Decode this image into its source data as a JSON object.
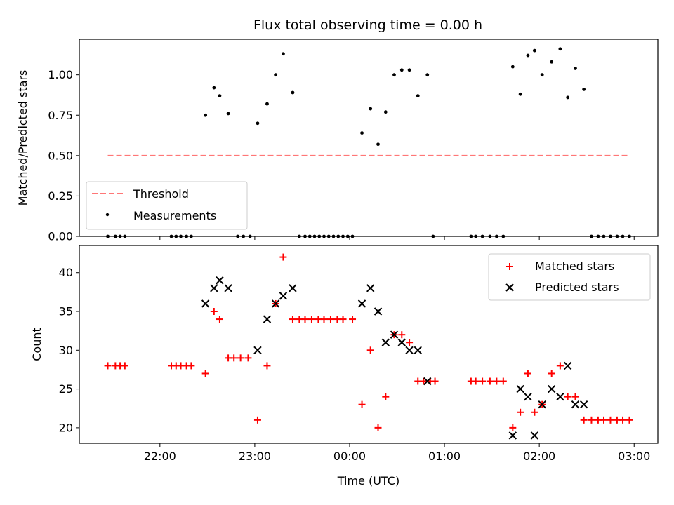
{
  "chart_data": [
    {
      "type": "scatter",
      "title": "Flux total observing time = 0.00 h",
      "xlabel": "",
      "ylabel": "Matched/Predicted stars",
      "ylim": [
        0,
        1.22
      ],
      "yticks": [
        "0.00",
        "0.25",
        "0.50",
        "0.75",
        "1.00"
      ],
      "xtick_labels_visible": false,
      "threshold": {
        "name": "Threshold",
        "value": 0.5,
        "x_range": [
          21.45,
          26.95
        ],
        "color": "#ff7777"
      },
      "legend": {
        "placement": "lower left",
        "entries": [
          "Threshold",
          "Measurements"
        ]
      },
      "series": [
        {
          "name": "Measurements",
          "color": "#000000",
          "marker": "dot",
          "points": [
            [
              21.45,
              0
            ],
            [
              21.53,
              0
            ],
            [
              21.58,
              0
            ],
            [
              21.63,
              0
            ],
            [
              22.12,
              0
            ],
            [
              22.17,
              0
            ],
            [
              22.22,
              0
            ],
            [
              22.28,
              0
            ],
            [
              22.33,
              0
            ],
            [
              22.48,
              0.75
            ],
            [
              22.57,
              0.92
            ],
            [
              22.63,
              0.87
            ],
            [
              22.72,
              0.76
            ],
            [
              22.82,
              0
            ],
            [
              22.88,
              0
            ],
            [
              22.95,
              0
            ],
            [
              23.03,
              0.7
            ],
            [
              23.13,
              0.82
            ],
            [
              23.22,
              1.0
            ],
            [
              23.3,
              1.13
            ],
            [
              23.4,
              0.89
            ],
            [
              23.47,
              0
            ],
            [
              23.53,
              0
            ],
            [
              23.58,
              0
            ],
            [
              23.63,
              0
            ],
            [
              23.68,
              0
            ],
            [
              23.73,
              0
            ],
            [
              23.78,
              0
            ],
            [
              23.83,
              0
            ],
            [
              23.88,
              0
            ],
            [
              23.93,
              0
            ],
            [
              23.98,
              0
            ],
            [
              24.03,
              0
            ],
            [
              24.13,
              0.64
            ],
            [
              24.22,
              0.79
            ],
            [
              24.3,
              0.57
            ],
            [
              24.38,
              0.77
            ],
            [
              24.47,
              1.0
            ],
            [
              24.55,
              1.03
            ],
            [
              24.63,
              1.03
            ],
            [
              24.72,
              0.87
            ],
            [
              24.82,
              1.0
            ],
            [
              24.88,
              0
            ],
            [
              25.28,
              0
            ],
            [
              25.33,
              0
            ],
            [
              25.4,
              0
            ],
            [
              25.48,
              0
            ],
            [
              25.55,
              0
            ],
            [
              25.62,
              0
            ],
            [
              25.72,
              1.05
            ],
            [
              25.8,
              0.88
            ],
            [
              25.88,
              1.12
            ],
            [
              25.95,
              1.15
            ],
            [
              26.03,
              1.0
            ],
            [
              26.13,
              1.08
            ],
            [
              26.22,
              1.16
            ],
            [
              26.3,
              0.86
            ],
            [
              26.38,
              1.04
            ],
            [
              26.47,
              0.91
            ],
            [
              26.55,
              0
            ],
            [
              26.62,
              0
            ],
            [
              26.68,
              0
            ],
            [
              26.75,
              0
            ],
            [
              26.82,
              0
            ],
            [
              26.88,
              0
            ],
            [
              26.95,
              0
            ]
          ]
        }
      ]
    },
    {
      "type": "scatter",
      "title": "",
      "xlabel": "Time (UTC)",
      "ylabel": "Count",
      "ylim": [
        18,
        43.5
      ],
      "yticks": [
        "20",
        "25",
        "30",
        "35",
        "40"
      ],
      "x_ticks": [
        {
          "value": 22,
          "label": "22:00"
        },
        {
          "value": 23,
          "label": "23:00"
        },
        {
          "value": 24,
          "label": "00:00"
        },
        {
          "value": 25,
          "label": "01:00"
        },
        {
          "value": 26,
          "label": "02:00"
        },
        {
          "value": 27,
          "label": "03:00"
        }
      ],
      "legend": {
        "placement": "upper right",
        "entries": [
          "Matched stars",
          "Predicted stars"
        ]
      },
      "series": [
        {
          "name": "Matched stars",
          "color": "#ff0000",
          "marker": "plus",
          "points": [
            [
              21.45,
              28
            ],
            [
              21.53,
              28
            ],
            [
              21.58,
              28
            ],
            [
              21.63,
              28
            ],
            [
              22.12,
              28
            ],
            [
              22.17,
              28
            ],
            [
              22.22,
              28
            ],
            [
              22.28,
              28
            ],
            [
              22.33,
              28
            ],
            [
              22.48,
              27
            ],
            [
              22.57,
              35
            ],
            [
              22.63,
              34
            ],
            [
              22.72,
              29
            ],
            [
              22.78,
              29
            ],
            [
              22.85,
              29
            ],
            [
              22.93,
              29
            ],
            [
              23.03,
              21
            ],
            [
              23.13,
              28
            ],
            [
              23.22,
              36
            ],
            [
              23.3,
              42
            ],
            [
              23.4,
              34
            ],
            [
              23.47,
              34
            ],
            [
              23.53,
              34
            ],
            [
              23.6,
              34
            ],
            [
              23.67,
              34
            ],
            [
              23.73,
              34
            ],
            [
              23.8,
              34
            ],
            [
              23.87,
              34
            ],
            [
              23.93,
              34
            ],
            [
              24.03,
              34
            ],
            [
              24.13,
              23
            ],
            [
              24.22,
              30
            ],
            [
              24.3,
              20
            ],
            [
              24.38,
              24
            ],
            [
              24.47,
              32
            ],
            [
              24.55,
              32
            ],
            [
              24.63,
              31
            ],
            [
              24.72,
              26
            ],
            [
              24.78,
              26
            ],
            [
              24.85,
              26
            ],
            [
              24.9,
              26
            ],
            [
              25.28,
              26
            ],
            [
              25.33,
              26
            ],
            [
              25.4,
              26
            ],
            [
              25.48,
              26
            ],
            [
              25.55,
              26
            ],
            [
              25.62,
              26
            ],
            [
              25.72,
              20
            ],
            [
              25.8,
              22
            ],
            [
              25.88,
              27
            ],
            [
              25.95,
              22
            ],
            [
              26.03,
              23
            ],
            [
              26.13,
              27
            ],
            [
              26.22,
              28
            ],
            [
              26.3,
              24
            ],
            [
              26.38,
              24
            ],
            [
              26.47,
              21
            ],
            [
              26.55,
              21
            ],
            [
              26.62,
              21
            ],
            [
              26.68,
              21
            ],
            [
              26.75,
              21
            ],
            [
              26.82,
              21
            ],
            [
              26.88,
              21
            ],
            [
              26.95,
              21
            ]
          ]
        },
        {
          "name": "Predicted stars",
          "color": "#000000",
          "marker": "x",
          "points": [
            [
              22.48,
              36
            ],
            [
              22.57,
              38
            ],
            [
              22.63,
              39
            ],
            [
              22.72,
              38
            ],
            [
              23.03,
              30
            ],
            [
              23.13,
              34
            ],
            [
              23.22,
              36
            ],
            [
              23.3,
              37
            ],
            [
              23.4,
              38
            ],
            [
              24.13,
              36
            ],
            [
              24.22,
              38
            ],
            [
              24.3,
              35
            ],
            [
              24.38,
              31
            ],
            [
              24.47,
              32
            ],
            [
              24.55,
              31
            ],
            [
              24.63,
              30
            ],
            [
              24.72,
              30
            ],
            [
              24.82,
              26
            ],
            [
              25.72,
              19
            ],
            [
              25.8,
              25
            ],
            [
              25.88,
              24
            ],
            [
              25.95,
              19
            ],
            [
              26.03,
              23
            ],
            [
              26.13,
              25
            ],
            [
              26.22,
              24
            ],
            [
              26.3,
              28
            ],
            [
              26.38,
              23
            ],
            [
              26.47,
              23
            ]
          ]
        }
      ]
    }
  ]
}
